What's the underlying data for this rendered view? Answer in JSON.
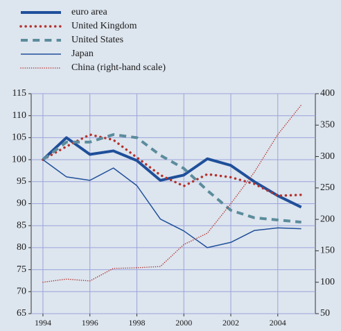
{
  "chart_data": {
    "type": "line",
    "x": [
      1994,
      1995,
      1996,
      1997,
      1998,
      1999,
      2000,
      2001,
      2002,
      2003,
      2004,
      2005
    ],
    "series": [
      {
        "name": "euro area",
        "color": "#1f4f9a",
        "style": "solid",
        "width": 4,
        "values": [
          100,
          105,
          101.2,
          102,
          99.8,
          95.3,
          96.5,
          100.2,
          98.7,
          95,
          91.8,
          89.2
        ]
      },
      {
        "name": "United Kingdom",
        "color": "#b3332e",
        "style": "dotted",
        "width": 3.5,
        "values": [
          100,
          103,
          105.7,
          104.5,
          100.5,
          96.5,
          94,
          96.7,
          96,
          94.5,
          91.8,
          92
        ]
      },
      {
        "name": "United States",
        "color": "#5b8c9c",
        "style": "dashed",
        "width": 4,
        "values": [
          100,
          104,
          104,
          105.7,
          105,
          101,
          98,
          93,
          88.5,
          86.8,
          86.3,
          85.8
        ]
      },
      {
        "name": "Japan",
        "color": "#1f4f9a",
        "style": "solid",
        "width": 1.5,
        "values": [
          100,
          96.1,
          95.3,
          98.1,
          94.1,
          86.5,
          83.8,
          80,
          81.2,
          83.9,
          84.5,
          84.3
        ]
      },
      {
        "name": "China (right-hand scale)",
        "color": "#b3332e",
        "style": "dotted",
        "width": 1.5,
        "axis": "y2",
        "values": [
          100,
          105,
          102,
          122,
          123,
          125,
          160,
          178,
          225,
          275,
          335,
          382
        ]
      }
    ],
    "xlim": [
      1993.5,
      2005.6
    ],
    "xticks": [
      1994,
      1996,
      1998,
      2000,
      2002,
      2004
    ],
    "ylim": [
      65,
      115
    ],
    "yticks": [
      65,
      70,
      75,
      80,
      85,
      90,
      95,
      100,
      105,
      110,
      115
    ],
    "y2lim": [
      50,
      400
    ],
    "y2ticks": [
      50,
      100,
      150,
      200,
      250,
      300,
      350,
      400
    ],
    "grid": true
  }
}
